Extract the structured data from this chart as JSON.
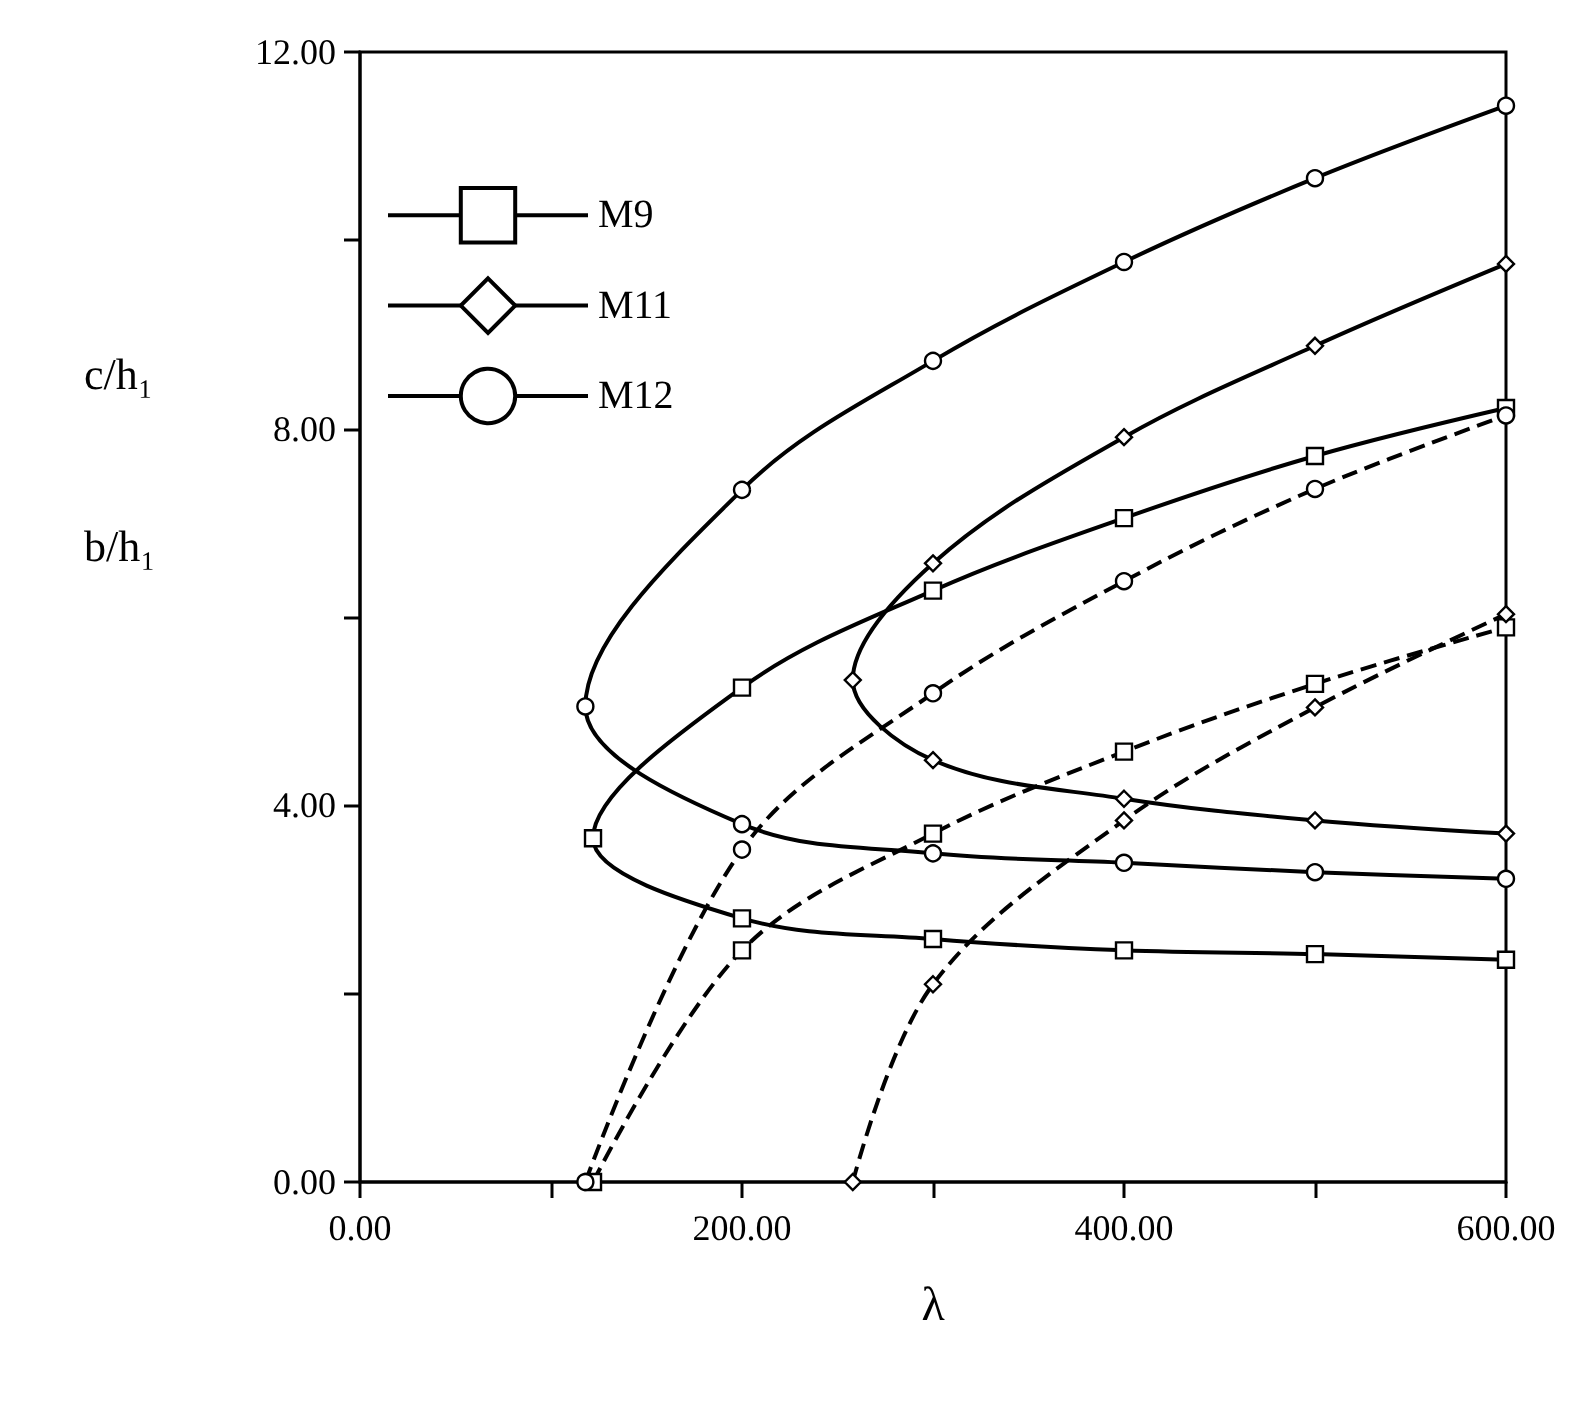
{
  "chart_data": {
    "type": "line",
    "xlabel": "λ",
    "ylabel": "c/h₁\nb/h₁",
    "xlim": [
      0,
      600
    ],
    "xticks": [
      {
        "value": 0,
        "label": "0.00"
      },
      {
        "value": 100,
        "label": null
      },
      {
        "value": 200,
        "label": "200.00"
      },
      {
        "value": 300,
        "label": null
      },
      {
        "value": 400,
        "label": "400.00"
      },
      {
        "value": 500,
        "label": null
      },
      {
        "value": 600,
        "label": "600.00"
      }
    ],
    "ylim": [
      0,
      12
    ],
    "yticks": [
      {
        "value": 0,
        "label": "0.00"
      },
      {
        "value": 2,
        "label": null
      },
      {
        "value": 4,
        "label": "4.00"
      },
      {
        "value": 6,
        "label": null
      },
      {
        "value": 8,
        "label": "8.00"
      },
      {
        "value": 10,
        "label": null
      },
      {
        "value": 12,
        "label": "12.00"
      }
    ],
    "grid": false,
    "legend": "top left",
    "series": [
      {
        "name": "M9",
        "color": "#000000",
        "marker": "square",
        "line_style": "solid",
        "x": [
          600,
          500,
          400,
          300,
          200,
          122,
          200,
          300,
          400,
          500,
          600
        ],
        "values": [
          8.22,
          7.71,
          7.05,
          6.28,
          5.25,
          3.65,
          2.8,
          2.58,
          2.46,
          2.42,
          2.36
        ]
      },
      {
        "name": "M11",
        "color": "#000000",
        "marker": "diamond",
        "line_style": "solid",
        "x": [
          600,
          500,
          400,
          300,
          258,
          300,
          400,
          500,
          600
        ],
        "values": [
          9.75,
          8.88,
          7.91,
          6.57,
          5.33,
          4.48,
          4.07,
          3.84,
          3.7
        ]
      },
      {
        "name": "M12",
        "color": "#000000",
        "marker": "circle",
        "line_style": "solid",
        "x": [
          600,
          500,
          400,
          300,
          200,
          118,
          200,
          300,
          400,
          500,
          600
        ],
        "values": [
          11.43,
          10.66,
          9.77,
          8.72,
          7.35,
          5.05,
          3.8,
          3.49,
          3.39,
          3.29,
          3.22
        ]
      },
      {
        "color": "#000000",
        "marker": "square",
        "line_style": "dashed",
        "x": [
          122,
          200,
          300,
          400,
          500,
          600
        ],
        "values": [
          0,
          2.46,
          3.7,
          4.57,
          5.29,
          5.89
        ]
      },
      {
        "color": "#000000",
        "marker": "diamond",
        "line_style": "dashed",
        "x": [
          258,
          300,
          400,
          500,
          600
        ],
        "values": [
          0,
          2.1,
          3.84,
          5.04,
          6.03
        ]
      },
      {
        "color": "#000000",
        "marker": "circle",
        "line_style": "dashed",
        "x": [
          118,
          200,
          300,
          400,
          500,
          600
        ],
        "values": [
          0,
          3.53,
          5.19,
          6.38,
          7.36,
          8.14
        ]
      }
    ]
  }
}
